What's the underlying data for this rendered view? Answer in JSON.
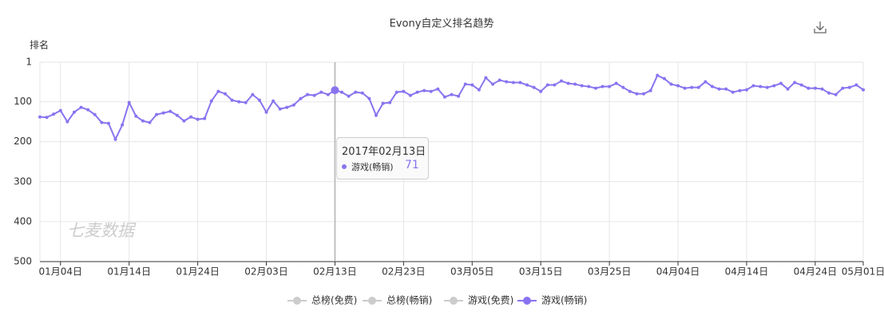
{
  "chart_data": {
    "type": "line",
    "title": "Evony自定义排名趋势",
    "y_label": "排名",
    "watermark": "七麦数据",
    "y_inverted": true,
    "grid": true,
    "ylim": [
      1,
      500
    ],
    "yticks": [
      1,
      100,
      200,
      300,
      400,
      500
    ],
    "xlim": [
      "2017-01-01",
      "2017-05-01"
    ],
    "xticks": [
      {
        "value": "2017-01-04",
        "label": "01月04日"
      },
      {
        "value": "2017-01-14",
        "label": "01月14日"
      },
      {
        "value": "2017-01-24",
        "label": "01月24日"
      },
      {
        "value": "2017-02-03",
        "label": "02月03日"
      },
      {
        "value": "2017-02-13",
        "label": "02月13日"
      },
      {
        "value": "2017-02-23",
        "label": "02月23日"
      },
      {
        "value": "2017-03-05",
        "label": "03月05日"
      },
      {
        "value": "2017-03-15",
        "label": "03月15日"
      },
      {
        "value": "2017-03-25",
        "label": "03月25日"
      },
      {
        "value": "2017-04-04",
        "label": "04月04日"
      },
      {
        "value": "2017-04-14",
        "label": "04月14日"
      },
      {
        "value": "2017-04-24",
        "label": "04月24日"
      },
      {
        "value": "2017-05-01",
        "label": "05月01日"
      }
    ],
    "x": [
      "2017-01-01",
      "2017-01-02",
      "2017-01-03",
      "2017-01-04",
      "2017-01-05",
      "2017-01-06",
      "2017-01-07",
      "2017-01-08",
      "2017-01-09",
      "2017-01-10",
      "2017-01-11",
      "2017-01-12",
      "2017-01-13",
      "2017-01-14",
      "2017-01-15",
      "2017-01-16",
      "2017-01-17",
      "2017-01-18",
      "2017-01-19",
      "2017-01-20",
      "2017-01-21",
      "2017-01-22",
      "2017-01-23",
      "2017-01-24",
      "2017-01-25",
      "2017-01-26",
      "2017-01-27",
      "2017-01-28",
      "2017-01-29",
      "2017-01-30",
      "2017-01-31",
      "2017-02-01",
      "2017-02-02",
      "2017-02-03",
      "2017-02-04",
      "2017-02-05",
      "2017-02-06",
      "2017-02-07",
      "2017-02-08",
      "2017-02-09",
      "2017-02-10",
      "2017-02-11",
      "2017-02-12",
      "2017-02-13",
      "2017-02-14",
      "2017-02-15",
      "2017-02-16",
      "2017-02-17",
      "2017-02-18",
      "2017-02-19",
      "2017-02-20",
      "2017-02-21",
      "2017-02-22",
      "2017-02-23",
      "2017-02-24",
      "2017-02-25",
      "2017-02-26",
      "2017-02-27",
      "2017-02-28",
      "2017-03-01",
      "2017-03-02",
      "2017-03-03",
      "2017-03-04",
      "2017-03-05",
      "2017-03-06",
      "2017-03-07",
      "2017-03-08",
      "2017-03-09",
      "2017-03-10",
      "2017-03-11",
      "2017-03-12",
      "2017-03-13",
      "2017-03-14",
      "2017-03-15",
      "2017-03-16",
      "2017-03-17",
      "2017-03-18",
      "2017-03-19",
      "2017-03-20",
      "2017-03-21",
      "2017-03-22",
      "2017-03-23",
      "2017-03-24",
      "2017-03-25",
      "2017-03-26",
      "2017-03-27",
      "2017-03-28",
      "2017-03-29",
      "2017-03-30",
      "2017-03-31",
      "2017-04-01",
      "2017-04-02",
      "2017-04-03",
      "2017-04-04",
      "2017-04-05",
      "2017-04-06",
      "2017-04-07",
      "2017-04-08",
      "2017-04-09",
      "2017-04-10",
      "2017-04-11",
      "2017-04-12",
      "2017-04-13",
      "2017-04-14",
      "2017-04-15",
      "2017-04-16",
      "2017-04-17",
      "2017-04-18",
      "2017-04-19",
      "2017-04-20",
      "2017-04-21",
      "2017-04-22",
      "2017-04-23",
      "2017-04-24",
      "2017-04-25",
      "2017-04-26",
      "2017-04-27",
      "2017-04-28",
      "2017-04-29",
      "2017-04-30",
      "2017-05-01"
    ],
    "series": [
      {
        "name": "总榜(免费)",
        "color": "#cccccc",
        "visible": false
      },
      {
        "name": "总榜(畅销)",
        "color": "#cccccc",
        "visible": false
      },
      {
        "name": "游戏(免费)",
        "color": "#cccccc",
        "visible": false
      },
      {
        "name": "游戏(畅销)",
        "color": "#8a73f0",
        "visible": true,
        "values": [
          138,
          139,
          131,
          122,
          150,
          126,
          114,
          120,
          132,
          152,
          154,
          194,
          158,
          102,
          136,
          148,
          152,
          132,
          128,
          124,
          134,
          148,
          138,
          144,
          142,
          98,
          74,
          80,
          96,
          100,
          102,
          82,
          96,
          126,
          98,
          118,
          114,
          108,
          92,
          82,
          84,
          76,
          82,
          71,
          76,
          86,
          76,
          78,
          92,
          134,
          104,
          102,
          76,
          74,
          84,
          76,
          72,
          74,
          68,
          88,
          82,
          86,
          56,
          58,
          70,
          40,
          56,
          46,
          50,
          52,
          52,
          58,
          64,
          74,
          58,
          58,
          48,
          54,
          56,
          60,
          62,
          66,
          62,
          62,
          54,
          64,
          74,
          80,
          80,
          72,
          34,
          42,
          56,
          60,
          66,
          64,
          64,
          50,
          62,
          68,
          68,
          76,
          72,
          70,
          60,
          62,
          64,
          60,
          54,
          68,
          52,
          58,
          66,
          66,
          68,
          78,
          82,
          66,
          64,
          58,
          70
        ]
      }
    ],
    "tooltip": {
      "label": "2017年02月13日",
      "x": "2017-02-13",
      "series": 3
    }
  }
}
